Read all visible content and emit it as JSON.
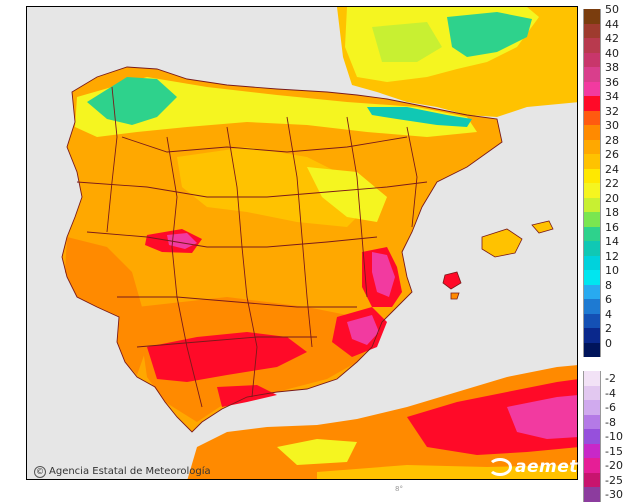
{
  "credit": {
    "symbol": "©",
    "text": "Agencia Estatal de Meteorología"
  },
  "brand": "aemet",
  "legend": {
    "positive_ticks": [
      "50",
      "44",
      "42",
      "40",
      "38",
      "36",
      "34",
      "32",
      "30",
      "28",
      "26",
      "24",
      "22",
      "20",
      "18",
      "16",
      "14",
      "12",
      "10",
      "8",
      "6",
      "4",
      "2",
      "0"
    ],
    "positive_colors": [
      "#7a3d0e",
      "#9e3b2e",
      "#b83a4e",
      "#c8366b",
      "#d93e8c",
      "#f23aa0",
      "#ff0a28",
      "#ff5a10",
      "#ff8a00",
      "#ffa800",
      "#ffc200",
      "#ffe800",
      "#f5f520",
      "#c8f032",
      "#7ae650",
      "#2ed28c",
      "#10c8b4",
      "#00d2dc",
      "#00e6f0",
      "#28aaf0",
      "#1e7ad2",
      "#1450b4",
      "#0a288c",
      "#00145a"
    ],
    "negative_ticks": [
      "-2",
      "-4",
      "-6",
      "-8",
      "-10",
      "-15",
      "-20",
      "-25",
      "-30"
    ],
    "negative_colors": [
      "#f2e2f6",
      "#e2c8f0",
      "#d0aaee",
      "#b47ae6",
      "#9650dc",
      "#c828c8",
      "#e61e96",
      "#c8146e",
      "#8c3c9e"
    ]
  },
  "map_colors": {
    "sea": "#e6e6e6",
    "land_base": "#ffa800",
    "warm": "#ff8a00",
    "hot": "#ff0a28",
    "very_hot": "#f23aa0",
    "mild": "#ffc200",
    "cool": "#f5f520",
    "cooler": "#c8f032",
    "cold": "#2ed28c",
    "border": "#7a1a1a"
  },
  "bottom_mark": "8°"
}
